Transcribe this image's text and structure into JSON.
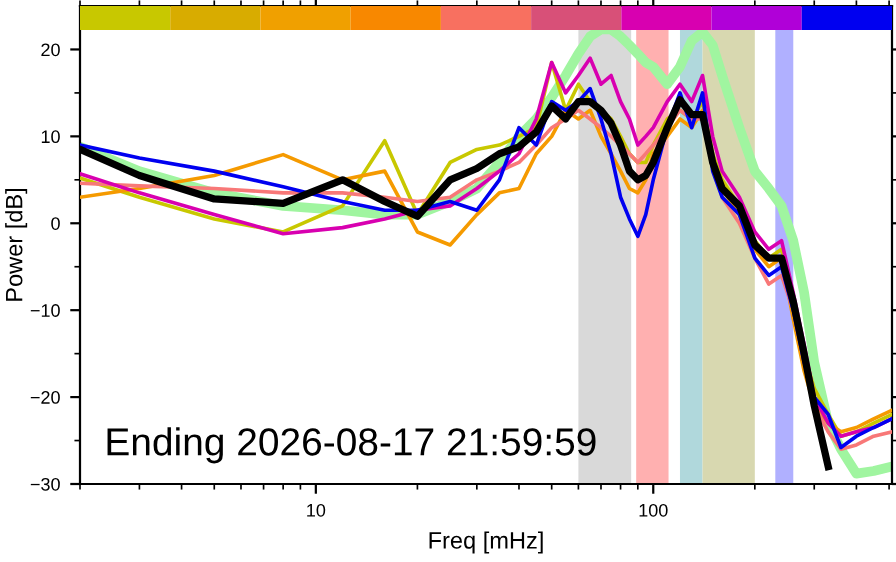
{
  "chart_data": {
    "type": "line",
    "xlabel": "Freq [mHz]",
    "ylabel": "Power [dB]",
    "log": "x",
    "xlim": [
      2,
      510
    ],
    "xticks": [
      10,
      100
    ],
    "ylim": [
      -30,
      25
    ],
    "yticks": [
      -30,
      -20,
      -10,
      0,
      10,
      20
    ],
    "grid": false,
    "x": [
      2,
      3,
      5,
      8,
      12,
      16,
      20,
      25,
      30,
      35,
      40,
      45,
      50,
      55,
      60,
      65,
      70,
      75,
      80,
      85,
      90,
      95,
      100,
      110,
      120,
      130,
      140,
      150,
      160,
      180,
      200,
      220,
      240,
      260,
      280,
      300,
      330,
      360,
      400,
      450,
      510
    ],
    "series": [
      {
        "color": "#a0f5a0",
        "values": [
          8.8,
          6,
          3.5,
          2.0,
          1.5,
          1.0,
          1.0,
          2.5,
          4,
          7,
          10,
          12,
          14.5,
          17,
          19.5,
          21.5,
          22.3,
          22.3,
          21.5,
          20.5,
          19.5,
          18.5,
          18,
          16,
          18,
          21,
          22,
          20.5,
          17,
          11,
          6,
          4,
          2,
          -2,
          -8,
          -16,
          -23,
          -26,
          -28.8,
          -28.5,
          -28
        ]
      },
      {
        "color": "#c8c800",
        "values": [
          5.2,
          3,
          0.5,
          -1,
          2,
          9.5,
          1,
          7,
          8.5,
          9,
          10,
          11,
          18.5,
          13,
          16,
          14,
          13,
          12,
          10,
          8,
          7,
          7,
          9,
          12,
          13,
          12,
          14,
          8,
          5,
          2,
          -2,
          -4,
          -3,
          -9,
          -15,
          -19,
          -22,
          -24.5,
          -24,
          -23,
          -22
        ]
      },
      {
        "color": "#f59a00",
        "values": [
          3.0,
          4,
          5.5,
          7.9,
          5,
          6,
          -1,
          -2.5,
          1,
          3.5,
          4,
          8,
          10,
          13,
          12,
          13,
          10,
          8,
          6,
          4,
          3.5,
          5,
          8,
          10,
          12,
          11,
          13,
          7,
          4,
          1,
          -3,
          -5,
          -4,
          -11,
          -17,
          -21,
          -23,
          -24,
          -23.5,
          -22.5,
          -21.5
        ]
      },
      {
        "color": "#f87878",
        "values": [
          4.6,
          4.3,
          4,
          3.5,
          3.5,
          3,
          2.5,
          3,
          5,
          6,
          7,
          9,
          11,
          12,
          13,
          12,
          11,
          10,
          9,
          8,
          7,
          8,
          9,
          11,
          13,
          12,
          12,
          7,
          3,
          0,
          -4,
          -7,
          -6,
          -10,
          -16,
          -21,
          -24,
          -26,
          -25.5,
          -24.5,
          -24
        ]
      },
      {
        "color": "#d800b0",
        "values": [
          5.7,
          3.5,
          1,
          -1.2,
          -0.5,
          0.5,
          1.5,
          2,
          4,
          6,
          8,
          12,
          18.5,
          15,
          17,
          19,
          16,
          17,
          14,
          12,
          9,
          10,
          11,
          14,
          16,
          14,
          17,
          10,
          6,
          3,
          -1,
          -3,
          -2,
          -8,
          -14,
          -20,
          -23,
          -24.5,
          -24,
          -23.5,
          -22.5
        ]
      },
      {
        "color": "#0000f0",
        "values": [
          9.0,
          7.5,
          6.0,
          4.2,
          2.5,
          1.5,
          1.5,
          2.5,
          1.5,
          5,
          11,
          9,
          14,
          13,
          14,
          15.5,
          12,
          8,
          3,
          0.5,
          -1.5,
          1,
          5,
          11,
          15,
          11,
          15,
          6,
          3,
          1,
          -4,
          -6,
          -5,
          -10,
          -16,
          -20,
          -22,
          -25.8,
          -24.5,
          -23.5,
          -22.5
        ]
      },
      {
        "color": "#000000",
        "values": [
          8.5,
          5.5,
          2.8,
          2.3,
          5.0,
          2.5,
          0.8,
          5.0,
          6.3,
          8.0,
          8.8,
          10.5,
          13.5,
          12.0,
          14.0,
          14.0,
          13.0,
          11.5,
          9,
          6,
          5.0,
          5.5,
          7,
          11,
          14.2,
          12.5,
          12.5,
          7,
          4,
          2.0,
          -2.5,
          -4,
          -4,
          -9,
          -15,
          -21,
          -28,
          null,
          null,
          null,
          null
        ]
      }
    ],
    "bands": [
      {
        "axis": "x",
        "from": 60,
        "to": 86,
        "color": "#d9d9d9"
      },
      {
        "axis": "x",
        "from": 89,
        "to": 111,
        "color": "#ffb0b0"
      },
      {
        "axis": "x",
        "from": 120,
        "to": 140,
        "color": "#b0d8dc"
      },
      {
        "axis": "x",
        "from": 140,
        "to": 200,
        "color": "#d8d8b0"
      },
      {
        "axis": "x",
        "from": 230,
        "to": 260,
        "color": "#b0b0ff"
      }
    ],
    "annotations": [
      "Ending 2026-08-17 21:59:59"
    ]
  }
}
